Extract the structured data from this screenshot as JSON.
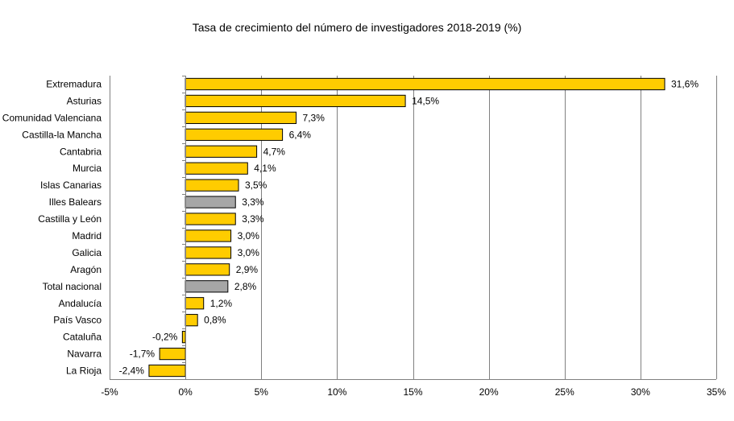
{
  "chart_data": {
    "type": "bar",
    "orientation": "horizontal",
    "title": "Tasa de crecimiento del número de investigadores 2018-2019 (%)",
    "xlabel": "",
    "ylabel": "",
    "xlim": [
      -5,
      35
    ],
    "grid": true,
    "x_ticks": [
      "-5%",
      "0%",
      "5%",
      "10%",
      "15%",
      "20%",
      "25%",
      "30%",
      "35%"
    ],
    "categories": [
      "Extremadura",
      "Asturias",
      "Comunidad Valenciana",
      "Castilla-la Mancha",
      "Cantabria",
      "Murcia",
      "Islas Canarias",
      "Illes Balears",
      "Castilla y León",
      "Madrid",
      "Galicia",
      "Aragón",
      "Total nacional",
      "Andalucía",
      "País Vasco",
      "Cataluña",
      "Navarra",
      "La Rioja"
    ],
    "values": [
      31.6,
      14.5,
      7.3,
      6.4,
      4.7,
      4.1,
      3.5,
      3.3,
      3.3,
      3.0,
      3.0,
      2.9,
      2.8,
      1.2,
      0.8,
      -0.2,
      -1.7,
      -2.4
    ],
    "labels": [
      "31,6%",
      "14,5%",
      "7,3%",
      "6,4%",
      "4,7%",
      "4,1%",
      "3,5%",
      "3,3%",
      "3,3%",
      "3,0%",
      "3,0%",
      "2,9%",
      "2,8%",
      "1,2%",
      "0,8%",
      "-0,2%",
      "-1,7%",
      "-2,4%"
    ],
    "highlighted": [
      "Illes Balears",
      "Total nacional"
    ],
    "colors": {
      "default": "#FFCC00",
      "highlight": "#A6A6A6",
      "bar_border": "#000000",
      "grid": "#808080",
      "axis": "#808080"
    }
  }
}
